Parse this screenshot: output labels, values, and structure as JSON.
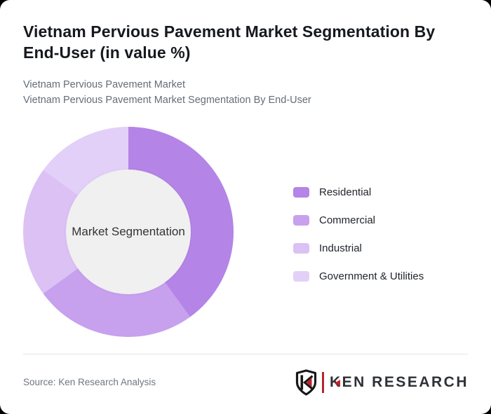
{
  "page": {
    "background": "#000000",
    "card_background": "#ffffff"
  },
  "header": {
    "title": "Vietnam Pervious Pavement Market Segmentation By End-User (in value %)",
    "subtitle1": "Vietnam Pervious Pavement Market",
    "subtitle2": "Vietnam Pervious Pavement Market Segmentation By End-User"
  },
  "chart_data": {
    "type": "pie",
    "subtype": "donut",
    "title": "Vietnam Pervious Pavement Market Segmentation By End-User (in value %)",
    "unit": "%",
    "center_label": "Market Segmentation",
    "categories": [
      "Residential",
      "Commercial",
      "Industrial",
      "Government & Utilities"
    ],
    "values": [
      40,
      25,
      20,
      15
    ],
    "colors": [
      "#b484e7",
      "#c7a0ee",
      "#dbc1f4",
      "#e3d0f8"
    ],
    "start_angle_deg": 0,
    "direction": "clockwise",
    "legend_position": "right",
    "data_labels_shown": false,
    "inner_circle_color": "#f0f0f0"
  },
  "footer": {
    "source": "Source: Ken Research Analysis",
    "logo": {
      "k": "K",
      "rest": "EN RESEARCH",
      "accent_red": "#c32127",
      "ink": "#2e3136"
    }
  }
}
